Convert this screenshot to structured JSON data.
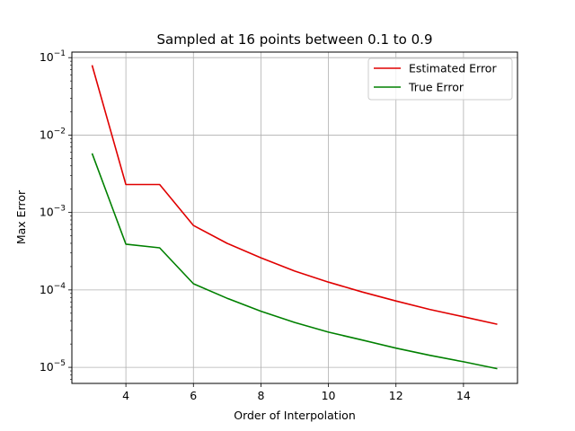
{
  "chart_data": {
    "type": "line",
    "title": "Sampled at 16 points between 0.1 to 0.9",
    "xlabel": "Order of Interpolation",
    "ylabel": "Max Error",
    "yscale": "log",
    "xlim": [
      2.4,
      15.6
    ],
    "ylim": [
      6.2e-06,
      0.118
    ],
    "grid": true,
    "legend_position": "top-right",
    "x_ticks": [
      4,
      6,
      8,
      10,
      12,
      14
    ],
    "x_tick_labels": [
      "4",
      "6",
      "8",
      "10",
      "12",
      "14"
    ],
    "y_ticks": [
      1e-05,
      0.0001,
      0.001,
      0.01,
      0.1
    ],
    "y_tick_bases": [
      "10",
      "10",
      "10",
      "10",
      "10"
    ],
    "y_tick_exponents": [
      "−5",
      "−4",
      "−3",
      "−2",
      "−1"
    ],
    "x": [
      3,
      4,
      5,
      6,
      7,
      8,
      9,
      10,
      11,
      12,
      13,
      14,
      15
    ],
    "series": [
      {
        "name": "Estimated Error",
        "color": "#e00000",
        "values": [
          0.08,
          0.0023,
          0.0023,
          0.00068,
          0.0004,
          0.00026,
          0.000175,
          0.000126,
          9.4e-05,
          7.2e-05,
          5.6e-05,
          4.5e-05,
          3.6e-05
        ]
      },
      {
        "name": "True Error",
        "color": "#008000",
        "values": [
          0.0058,
          0.00039,
          0.00035,
          0.00012,
          7.8e-05,
          5.3e-05,
          3.8e-05,
          2.85e-05,
          2.25e-05,
          1.77e-05,
          1.43e-05,
          1.18e-05,
          9.6e-06
        ]
      }
    ]
  }
}
